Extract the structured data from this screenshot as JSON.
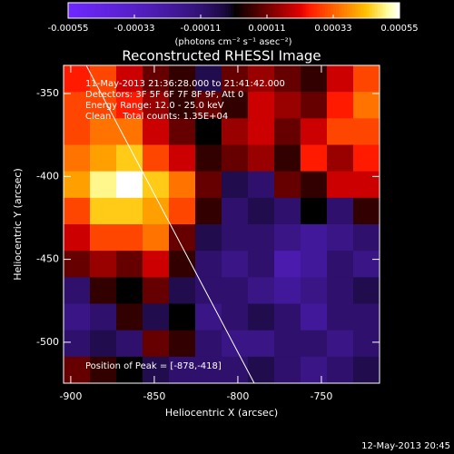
{
  "chart_data": {
    "type": "heatmap",
    "title": "Reconstructed RHESSI Image",
    "x_label": "Heliocentric X (arcsec)",
    "y_label": "Heliocentric Y (arcsec)",
    "colorbar_label": "(photons cm⁻² s⁻¹ asec⁻²)",
    "clim": [
      -0.00055,
      0.00055
    ],
    "colorbar_ticks": [
      -0.00055,
      -0.00033,
      -0.00011,
      0.00011,
      0.00033,
      0.00055
    ],
    "xlim": [
      -904.3,
      -715.2
    ],
    "ylim": [
      -524.7,
      -333
    ],
    "xticks": [
      -900,
      -850,
      -800,
      -750
    ],
    "yticks": [
      -350,
      -400,
      -450,
      -500
    ],
    "annotations": [
      "11-May-2013 21:36:28.000 to 21:41:42.000",
      "Detectors: 3F 5F 6F 7F 8F 9F, Att 0",
      "Energy Range: 12.0 - 25.0 keV",
      "Clean    Total counts: 1.35E+04"
    ],
    "peak_label": "Position of Peak = [-878,-418]",
    "footer": "12-May-2013 20:45",
    "values": [
      [
        0.00025,
        0.0003,
        0.0002,
        0.0001,
        5e-05,
        -5e-05,
        0.0001,
        0.00015,
        0.0001,
        5e-05,
        0.0002,
        0.0003
      ],
      [
        0.0003,
        0.0003,
        0.00025,
        0.00015,
        5e-05,
        0.0001,
        5e-05,
        0.0002,
        0.00015,
        0.0001,
        0.00025,
        0.00035
      ],
      [
        0.0003,
        0.00035,
        0.00035,
        0.0002,
        0.0001,
        0,
        0.00015,
        0.0002,
        0.0001,
        0.0002,
        0.0003,
        0.0003
      ],
      [
        0.00035,
        0.0004,
        0.00045,
        0.0003,
        0.0002,
        5e-05,
        0.0001,
        0.00015,
        5e-05,
        0.00025,
        0.00015,
        0.00025
      ],
      [
        0.0004,
        0.0005,
        0.00055,
        0.00045,
        0.00035,
        0.0001,
        -5e-05,
        -0.0001,
        0.0001,
        5e-05,
        0.0002,
        0.0002
      ],
      [
        0.0003,
        0.00045,
        0.00045,
        0.0004,
        0.0003,
        5e-05,
        -0.0001,
        -5e-05,
        -0.0001,
        0,
        -0.0001,
        5e-05
      ],
      [
        0.0002,
        0.0003,
        0.0003,
        0.00035,
        0.0001,
        -5e-05,
        -0.0001,
        -0.0001,
        -0.00015,
        -0.0002,
        -0.00015,
        -0.0001
      ],
      [
        0.0001,
        0.00015,
        0.0001,
        0.0002,
        5e-05,
        -0.0001,
        -0.00015,
        -0.0001,
        -0.00025,
        -0.0002,
        -0.0001,
        -0.00015
      ],
      [
        -0.0001,
        5e-05,
        0,
        0.0001,
        -5e-05,
        -0.0001,
        -0.0001,
        -0.00015,
        -0.0002,
        -0.00015,
        -0.0001,
        -5e-05
      ],
      [
        -0.00015,
        -0.0001,
        5e-05,
        -5e-05,
        0,
        -0.00015,
        -0.0001,
        -5e-05,
        -0.0001,
        -0.0002,
        -0.0001,
        -0.0001
      ],
      [
        -0.0001,
        -5e-05,
        -0.0001,
        0.0001,
        5e-05,
        -0.0001,
        -0.00015,
        -0.00015,
        -0.0001,
        -0.0001,
        -0.00015,
        -0.0001
      ],
      [
        0.0001,
        5e-05,
        0,
        -5e-05,
        -0.0001,
        -0.0001,
        -0.0001,
        -5e-05,
        -0.0001,
        -0.00015,
        -0.0001,
        -5e-05
      ]
    ]
  }
}
